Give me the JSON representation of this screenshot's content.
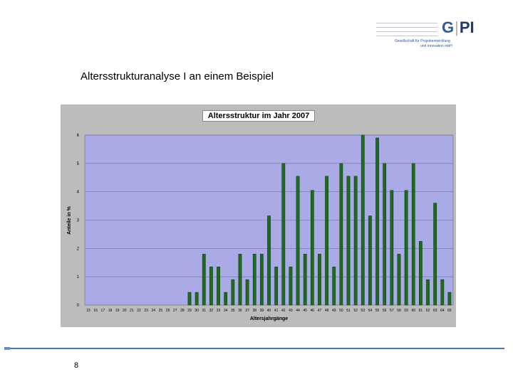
{
  "slide": {
    "title": "Altersstrukturanalyse I an einem Beispiel",
    "page_number": "8"
  },
  "logo": {
    "mark_g": "G",
    "mark_sep": "|",
    "mark_pi": "PI",
    "subtitle_line1": "Gesellschaft für Projektentwicklung",
    "subtitle_line2": "und Innovation mbH"
  },
  "colors": {
    "plot_background": "#aaaae6",
    "bar_fill": "#1e6a1e",
    "frame": "#bcbcbc",
    "footer_line": "#4a7ab0"
  },
  "chart_data": {
    "type": "bar",
    "title": "Altersstruktur im Jahr 2007",
    "xlabel": "Altersjahrgänge",
    "ylabel": "Anteile in %",
    "ylim": [
      0,
      6
    ],
    "yticks": [
      "0",
      "1",
      "2",
      "3",
      "4",
      "5",
      "6"
    ],
    "grid": true,
    "legend": "none",
    "categories": [
      "15",
      "16",
      "17",
      "18",
      "19",
      "20",
      "21",
      "22",
      "23",
      "24",
      "25",
      "26",
      "27",
      "28",
      "29",
      "30",
      "31",
      "32",
      "33",
      "34",
      "35",
      "36",
      "37",
      "38",
      "39",
      "40",
      "41",
      "42",
      "43",
      "44",
      "45",
      "46",
      "47",
      "48",
      "49",
      "50",
      "51",
      "52",
      "53",
      "54",
      "55",
      "56",
      "57",
      "58",
      "59",
      "60",
      "61",
      "62",
      "63",
      "64",
      "65"
    ],
    "values": [
      0,
      0,
      0,
      0,
      0,
      0,
      0,
      0,
      0,
      0,
      0,
      0,
      0,
      0,
      0.45,
      0.45,
      1.8,
      1.35,
      1.35,
      0.45,
      0.9,
      1.8,
      0.9,
      1.8,
      1.8,
      3.15,
      1.35,
      5.0,
      1.35,
      4.55,
      1.8,
      4.05,
      1.8,
      4.55,
      1.35,
      5.0,
      4.55,
      4.55,
      6.0,
      3.15,
      5.9,
      5.0,
      4.05,
      1.8,
      4.05,
      5.0,
      2.25,
      0.9,
      3.6,
      0.9,
      0.45
    ]
  }
}
